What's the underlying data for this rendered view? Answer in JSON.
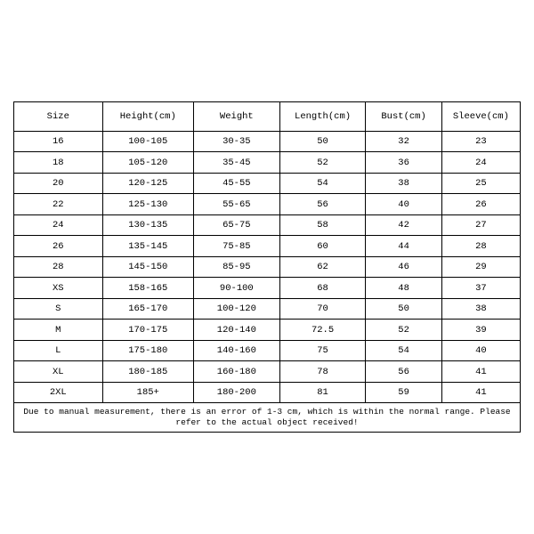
{
  "table": {
    "headers": [
      "Size",
      "Height(cm)",
      "Weight",
      "Length(cm)",
      "Bust(cm)",
      "Sleeve(cm)"
    ],
    "rows": [
      [
        "16",
        "100-105",
        "30-35",
        "50",
        "32",
        "23"
      ],
      [
        "18",
        "105-120",
        "35-45",
        "52",
        "36",
        "24"
      ],
      [
        "20",
        "120-125",
        "45-55",
        "54",
        "38",
        "25"
      ],
      [
        "22",
        "125-130",
        "55-65",
        "56",
        "40",
        "26"
      ],
      [
        "24",
        "130-135",
        "65-75",
        "58",
        "42",
        "27"
      ],
      [
        "26",
        "135-145",
        "75-85",
        "60",
        "44",
        "28"
      ],
      [
        "28",
        "145-150",
        "85-95",
        "62",
        "46",
        "29"
      ],
      [
        "XS",
        "158-165",
        "90-100",
        "68",
        "48",
        "37"
      ],
      [
        "S",
        "165-170",
        "100-120",
        "70",
        "50",
        "38"
      ],
      [
        "M",
        "170-175",
        "120-140",
        "72.5",
        "52",
        "39"
      ],
      [
        "L",
        "175-180",
        "140-160",
        "75",
        "54",
        "40"
      ],
      [
        "XL",
        "180-185",
        "160-180",
        "78",
        "56",
        "41"
      ],
      [
        "2XL",
        "185+",
        "180-200",
        "81",
        "59",
        "41"
      ]
    ],
    "footer": "Due to manual measurement, there is an error of 1-3 cm, which is within the normal range. Please refer to the actual object received!",
    "styling": {
      "border_color": "#000000",
      "background_color": "#ffffff",
      "text_color": "#000000",
      "font_family": "monospace",
      "header_fontsize": 10.5,
      "cell_fontsize": 10.5,
      "footer_fontsize": 9.5,
      "header_row_height": 33,
      "data_row_height": 23.5,
      "col_widths_pct": [
        17.5,
        18,
        17,
        17,
        15,
        15.5
      ]
    }
  }
}
